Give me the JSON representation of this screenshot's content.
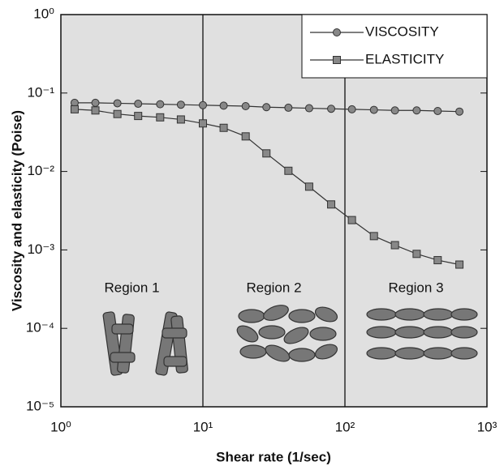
{
  "chart_data": {
    "type": "line",
    "x_label": "Shear rate (1/sec)",
    "y_label": "Viscosity and elasticity (Poise)",
    "x": [
      1.25,
      1.75,
      2.5,
      3.5,
      5,
      7,
      10,
      14,
      20,
      28,
      40,
      56,
      80,
      112,
      160,
      225,
      320,
      450,
      640
    ],
    "series": [
      {
        "name": "VISCOSITY",
        "color": "#888888",
        "marker": "circle",
        "values": [
          0.075,
          0.075,
          0.074,
          0.073,
          0.072,
          0.071,
          0.07,
          0.069,
          0.068,
          0.066,
          0.065,
          0.064,
          0.063,
          0.062,
          0.061,
          0.06,
          0.06,
          0.059,
          0.058
        ]
      },
      {
        "name": "ELASTICITY",
        "color": "#888888",
        "marker": "square",
        "values": [
          0.062,
          0.06,
          0.054,
          0.051,
          0.049,
          0.046,
          0.041,
          0.036,
          0.028,
          0.017,
          0.0102,
          0.0064,
          0.0038,
          0.0024,
          0.0015,
          0.00115,
          0.00089,
          0.00074,
          0.00065
        ]
      }
    ],
    "xscale": "log",
    "yscale": "log",
    "xlim": [
      1,
      1000
    ],
    "ylim": [
      1e-05,
      1
    ],
    "xticks": [
      {
        "value": 1,
        "label": "10⁰"
      },
      {
        "value": 10,
        "label": "10¹"
      },
      {
        "value": 100,
        "label": "10²"
      },
      {
        "value": 1000,
        "label": "10³"
      }
    ],
    "yticks": [
      {
        "value": 1e-05,
        "label": "10⁻⁵"
      },
      {
        "value": 0.0001,
        "label": "10⁻⁴"
      },
      {
        "value": 0.001,
        "label": "10⁻³"
      },
      {
        "value": 0.01,
        "label": "10⁻²"
      },
      {
        "value": 0.1,
        "label": "10⁻¹"
      },
      {
        "value": 1,
        "label": "10⁰"
      }
    ],
    "grid": false,
    "legend": "upper right",
    "boundaries": [
      10,
      100
    ],
    "regions": [
      "Region 1",
      "Region 2",
      "Region 3"
    ]
  }
}
